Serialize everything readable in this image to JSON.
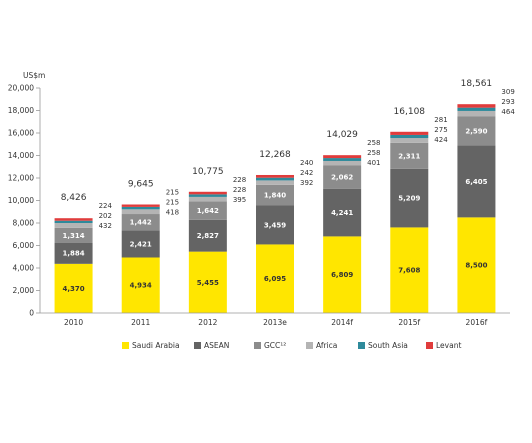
{
  "chart_data": {
    "type": "bar",
    "stacked": true,
    "ylabel": "US$m",
    "ylim": [
      0,
      20000
    ],
    "yticks": [
      0,
      2000,
      4000,
      6000,
      8000,
      10000,
      12000,
      14000,
      16000,
      18000,
      20000
    ],
    "ytick_labels": [
      "0",
      "2,000",
      "4,000",
      "6,000",
      "8,000",
      "10,000",
      "12,000",
      "14,000",
      "16,000",
      "18,000",
      "20,000"
    ],
    "categories": [
      "2010",
      "2011",
      "2012",
      "2013e",
      "2014f",
      "2015f",
      "2016f"
    ],
    "series": [
      {
        "name": "Saudi Arabia",
        "color": "#ffe600",
        "values": [
          4370,
          4934,
          5455,
          6095,
          6809,
          7608,
          8500
        ],
        "labels": [
          "4,370",
          "4,934",
          "5,455",
          "6,095",
          "6,809",
          "7,608",
          "8,500"
        ]
      },
      {
        "name": "ASEAN",
        "color": "#646464",
        "values": [
          1884,
          2421,
          2827,
          3459,
          4241,
          5209,
          6405
        ],
        "labels": [
          "1,884",
          "2,421",
          "2,827",
          "3,459",
          "4,241",
          "5,209",
          "6,405"
        ]
      },
      {
        "name": "GCC¹²",
        "color": "#8c8c8c",
        "values": [
          1314,
          1442,
          1642,
          1840,
          2062,
          2311,
          2590
        ],
        "labels": [
          "1,314",
          "1,442",
          "1,642",
          "1,840",
          "2,062",
          "2,311",
          "2,590"
        ]
      },
      {
        "name": "Africa",
        "color": "#b4b4b4",
        "values": [
          432,
          418,
          395,
          392,
          401,
          424,
          464
        ],
        "labels": [
          "432",
          "418",
          "395",
          "392",
          "401",
          "424",
          "464"
        ]
      },
      {
        "name": "South Asia",
        "color": "#2e8a9b",
        "values": [
          202,
          215,
          228,
          242,
          258,
          275,
          293
        ],
        "labels": [
          "202",
          "215",
          "228",
          "242",
          "258",
          "275",
          "293"
        ]
      },
      {
        "name": "Levant",
        "color": "#e03c3c",
        "values": [
          224,
          215,
          228,
          240,
          258,
          281,
          309
        ],
        "labels": [
          "224",
          "215",
          "228",
          "240",
          "258",
          "281",
          "309"
        ]
      }
    ],
    "totals": [
      "8,426",
      "9,645",
      "10,775",
      "12,268",
      "14,029",
      "16,108",
      "18,561"
    ],
    "legend_position": "bottom",
    "grid": false
  }
}
